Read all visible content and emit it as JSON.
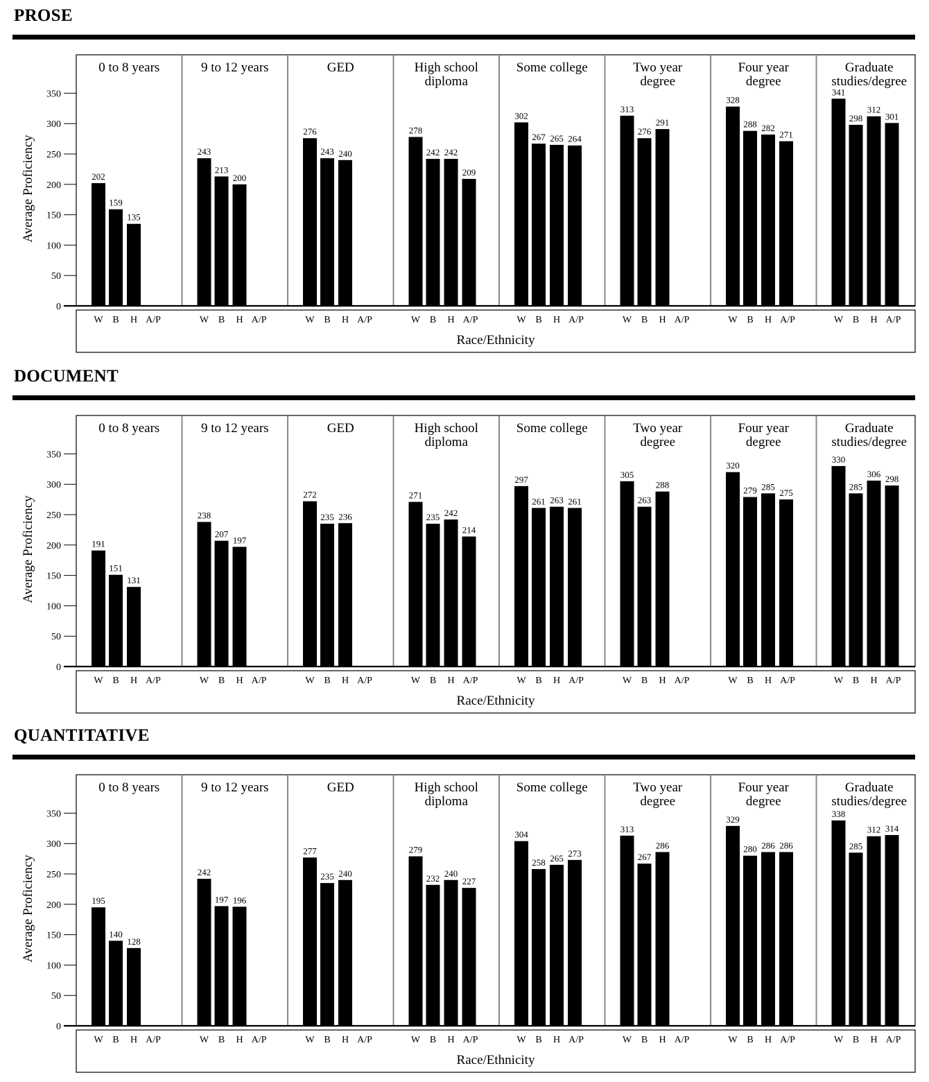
{
  "chart_data": [
    {
      "type": "bar",
      "title": "PROSE",
      "xlabel": "Race/Ethnicity",
      "ylabel": "Average Proficiency",
      "ylim": [
        0,
        350
      ],
      "yticks": [
        0,
        50,
        100,
        150,
        200,
        250,
        300,
        350
      ],
      "categories": [
        "W",
        "B",
        "H",
        "A/P"
      ],
      "panels": [
        {
          "label": "0 to 8 years",
          "values": [
            202,
            159,
            135,
            null
          ]
        },
        {
          "label": "9 to 12 years",
          "values": [
            243,
            213,
            200,
            null
          ]
        },
        {
          "label": "GED",
          "values": [
            276,
            243,
            240,
            null
          ]
        },
        {
          "label": "High school\ndiploma",
          "values": [
            278,
            242,
            242,
            209
          ]
        },
        {
          "label": "Some college",
          "values": [
            302,
            267,
            265,
            264
          ]
        },
        {
          "label": "Two year\ndegree",
          "values": [
            313,
            276,
            291,
            null
          ]
        },
        {
          "label": "Four year\ndegree",
          "values": [
            328,
            288,
            282,
            271
          ]
        },
        {
          "label": "Graduate\nstudies/degree",
          "values": [
            341,
            298,
            312,
            301
          ]
        }
      ]
    },
    {
      "type": "bar",
      "title": "DOCUMENT",
      "xlabel": "Race/Ethnicity",
      "ylabel": "Average Proficiency",
      "ylim": [
        0,
        350
      ],
      "yticks": [
        0,
        50,
        100,
        150,
        200,
        250,
        300,
        350
      ],
      "categories": [
        "W",
        "B",
        "H",
        "A/P"
      ],
      "panels": [
        {
          "label": "0 to 8 years",
          "values": [
            191,
            151,
            131,
            null
          ]
        },
        {
          "label": "9 to 12 years",
          "values": [
            238,
            207,
            197,
            null
          ]
        },
        {
          "label": "GED",
          "values": [
            272,
            235,
            236,
            null
          ]
        },
        {
          "label": "High school\ndiploma",
          "values": [
            271,
            235,
            242,
            214
          ]
        },
        {
          "label": "Some college",
          "values": [
            297,
            261,
            263,
            261
          ]
        },
        {
          "label": "Two year\ndegree",
          "values": [
            305,
            263,
            288,
            null
          ]
        },
        {
          "label": "Four year\ndegree",
          "values": [
            320,
            279,
            285,
            275
          ]
        },
        {
          "label": "Graduate\nstudies/degree",
          "values": [
            330,
            285,
            306,
            298
          ]
        }
      ]
    },
    {
      "type": "bar",
      "title": "QUANTITATIVE",
      "xlabel": "Race/Ethnicity",
      "ylabel": "Average Proficiency",
      "ylim": [
        0,
        350
      ],
      "yticks": [
        0,
        50,
        100,
        150,
        200,
        250,
        300,
        350
      ],
      "categories": [
        "W",
        "B",
        "H",
        "A/P"
      ],
      "panels": [
        {
          "label": "0 to 8 years",
          "values": [
            195,
            140,
            128,
            null
          ]
        },
        {
          "label": "9 to 12 years",
          "values": [
            242,
            197,
            196,
            null
          ]
        },
        {
          "label": "GED",
          "values": [
            277,
            235,
            240,
            null
          ]
        },
        {
          "label": "High school\ndiploma",
          "values": [
            279,
            232,
            240,
            227
          ]
        },
        {
          "label": "Some college",
          "values": [
            304,
            258,
            265,
            273
          ]
        },
        {
          "label": "Two year\ndegree",
          "values": [
            313,
            267,
            286,
            null
          ]
        },
        {
          "label": "Four year\ndegree",
          "values": [
            329,
            280,
            286,
            286
          ]
        },
        {
          "label": "Graduate\nstudies/degree",
          "values": [
            338,
            285,
            312,
            314
          ]
        }
      ]
    }
  ]
}
